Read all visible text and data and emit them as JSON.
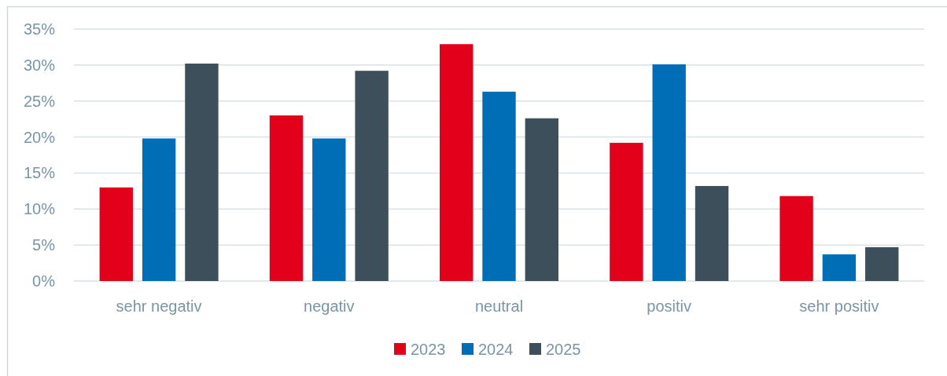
{
  "chart_data": {
    "type": "bar",
    "categories": [
      "sehr negativ",
      "negativ",
      "neutral",
      "positiv",
      "sehr positiv"
    ],
    "series": [
      {
        "name": "2023",
        "color": "#e2001a",
        "values": [
          13.0,
          23.0,
          32.9,
          19.2,
          11.8
        ]
      },
      {
        "name": "2024",
        "color": "#006eb7",
        "values": [
          19.8,
          19.8,
          26.3,
          30.1,
          3.7
        ]
      },
      {
        "name": "2025",
        "color": "#3c4f5a",
        "values": [
          30.2,
          29.2,
          22.6,
          13.2,
          4.7
        ]
      }
    ],
    "ylim": [
      0,
      35
    ],
    "yticks": [
      {
        "value": 0,
        "label": "0%"
      },
      {
        "value": 5,
        "label": "5%"
      },
      {
        "value": 10,
        "label": "10%"
      },
      {
        "value": 15,
        "label": "15%"
      },
      {
        "value": 20,
        "label": "20%"
      },
      {
        "value": 25,
        "label": "25%"
      },
      {
        "value": 30,
        "label": "30%"
      },
      {
        "value": 35,
        "label": "35%"
      }
    ],
    "grid": "y",
    "legend": "bottom"
  }
}
